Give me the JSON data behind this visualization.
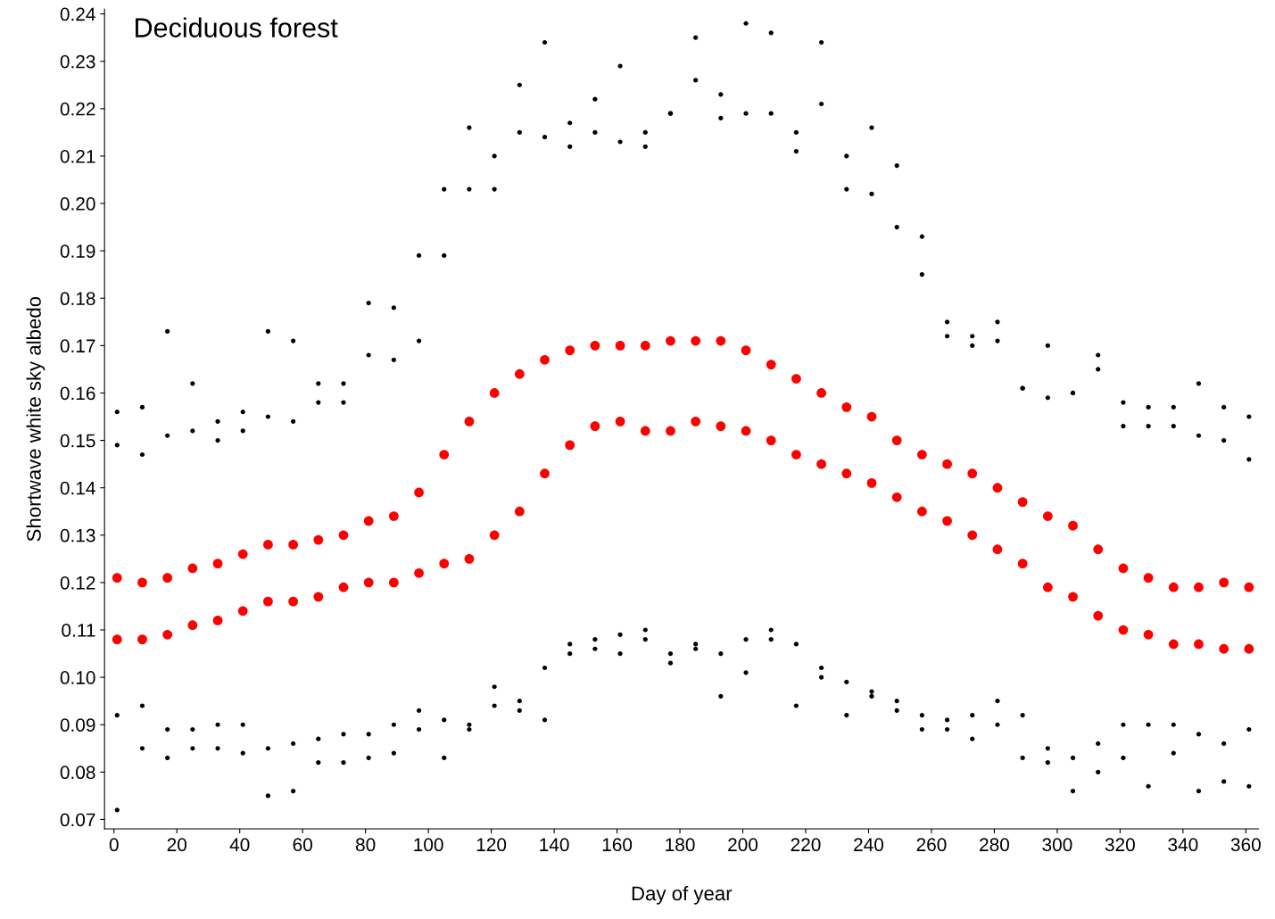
{
  "chart_data": {
    "type": "scatter",
    "xlabel": "Day of year",
    "ylabel": "Shortwave white sky albedo",
    "annotations": [
      "Deciduous forest"
    ],
    "marker": "circle",
    "grid": false,
    "xlim": [
      -3,
      364
    ],
    "xticks": [
      0,
      20,
      40,
      60,
      80,
      100,
      120,
      140,
      160,
      180,
      200,
      220,
      240,
      260,
      280,
      300,
      320,
      340,
      360
    ],
    "ylim": [
      0.068,
      0.241
    ],
    "yticks": [
      {
        "value": 0.07,
        "label": "0.07"
      },
      {
        "value": 0.08,
        "label": "0.08"
      },
      {
        "value": 0.09,
        "label": "0.09"
      },
      {
        "value": 0.1,
        "label": "0.10"
      },
      {
        "value": 0.11,
        "label": "0.11"
      },
      {
        "value": 0.12,
        "label": "0.12"
      },
      {
        "value": 0.13,
        "label": "0.13"
      },
      {
        "value": 0.14,
        "label": "0.14"
      },
      {
        "value": 0.15,
        "label": "0.15"
      },
      {
        "value": 0.16,
        "label": "0.16"
      },
      {
        "value": 0.17,
        "label": "0.17"
      },
      {
        "value": 0.18,
        "label": "0.18"
      },
      {
        "value": 0.19,
        "label": "0.19"
      },
      {
        "value": 0.2,
        "label": "0.20"
      },
      {
        "value": 0.21,
        "label": "0.21"
      },
      {
        "value": 0.22,
        "label": "0.22"
      },
      {
        "value": 0.23,
        "label": "0.23"
      },
      {
        "value": 0.24,
        "label": "0.24"
      }
    ],
    "x": [
      1,
      9,
      17,
      25,
      33,
      41,
      49,
      57,
      65,
      73,
      81,
      89,
      97,
      105,
      113,
      121,
      129,
      137,
      145,
      153,
      161,
      169,
      177,
      185,
      193,
      201,
      209,
      217,
      225,
      233,
      241,
      249,
      257,
      265,
      273,
      281,
      289,
      297,
      305,
      313,
      321,
      329,
      337,
      345,
      353,
      361
    ],
    "series": [
      {
        "color": "#000000",
        "x": [
          1,
          1,
          1,
          1,
          9,
          9,
          9,
          9,
          17,
          17,
          17,
          17,
          25,
          25,
          25,
          25,
          33,
          33,
          33,
          33,
          41,
          41,
          41,
          41,
          49,
          49,
          49,
          49,
          57,
          57,
          57,
          57,
          65,
          65,
          65,
          65,
          73,
          73,
          73,
          73,
          81,
          81,
          81,
          81,
          89,
          89,
          89,
          89,
          97,
          97,
          97,
          97,
          105,
          105,
          105,
          105,
          113,
          113,
          113,
          113,
          121,
          121,
          121,
          121,
          129,
          129,
          129,
          129,
          137,
          137,
          137,
          137,
          145,
          145,
          145,
          145,
          153,
          153,
          153,
          153,
          161,
          161,
          161,
          161,
          169,
          169,
          169,
          169,
          177,
          177,
          177,
          177,
          185,
          185,
          185,
          185,
          193,
          193,
          193,
          193,
          201,
          201,
          201,
          201,
          209,
          209,
          209,
          209,
          217,
          217,
          217,
          217,
          225,
          225,
          225,
          225,
          233,
          233,
          233,
          233,
          241,
          241,
          241,
          241,
          249,
          249,
          249,
          249,
          257,
          257,
          257,
          257,
          265,
          265,
          265,
          265,
          273,
          273,
          273,
          273,
          281,
          281,
          281,
          281,
          289,
          289,
          289,
          289,
          297,
          297,
          297,
          297,
          305,
          305,
          305,
          305,
          313,
          313,
          313,
          313,
          321,
          321,
          321,
          321,
          329,
          329,
          329,
          329,
          337,
          337,
          337,
          337,
          345,
          345,
          345,
          345,
          353,
          353,
          353,
          353,
          361,
          361,
          361,
          361
        ],
        "values": [
          0.072,
          0.092,
          0.149,
          0.156,
          0.085,
          0.094,
          0.147,
          0.157,
          0.083,
          0.089,
          0.151,
          0.173,
          0.085,
          0.089,
          0.152,
          0.162,
          0.085,
          0.09,
          0.15,
          0.154,
          0.084,
          0.09,
          0.152,
          0.156,
          0.075,
          0.085,
          0.155,
          0.173,
          0.076,
          0.086,
          0.154,
          0.171,
          0.082,
          0.087,
          0.158,
          0.162,
          0.082,
          0.088,
          0.158,
          0.162,
          0.083,
          0.088,
          0.168,
          0.179,
          0.084,
          0.09,
          0.167,
          0.178,
          0.089,
          0.093,
          0.171,
          0.189,
          0.083,
          0.091,
          0.189,
          0.203,
          0.089,
          0.09,
          0.203,
          0.216,
          0.094,
          0.098,
          0.203,
          0.21,
          0.093,
          0.095,
          0.215,
          0.225,
          0.091,
          0.102,
          0.214,
          0.234,
          0.105,
          0.107,
          0.212,
          0.217,
          0.106,
          0.108,
          0.215,
          0.222,
          0.105,
          0.109,
          0.213,
          0.229,
          0.108,
          0.11,
          0.212,
          0.215,
          0.103,
          0.105,
          0.219,
          0.219,
          0.106,
          0.107,
          0.226,
          0.235,
          0.096,
          0.105,
          0.218,
          0.223,
          0.101,
          0.108,
          0.219,
          0.238,
          0.108,
          0.11,
          0.219,
          0.236,
          0.094,
          0.107,
          0.211,
          0.215,
          0.1,
          0.102,
          0.221,
          0.234,
          0.092,
          0.099,
          0.203,
          0.21,
          0.096,
          0.097,
          0.202,
          0.216,
          0.093,
          0.095,
          0.195,
          0.208,
          0.089,
          0.092,
          0.185,
          0.193,
          0.089,
          0.091,
          0.172,
          0.175,
          0.087,
          0.092,
          0.17,
          0.172,
          0.09,
          0.095,
          0.171,
          0.175,
          0.083,
          0.092,
          0.161,
          0.161,
          0.082,
          0.085,
          0.159,
          0.17,
          0.076,
          0.083,
          0.16,
          0.16,
          0.08,
          0.086,
          0.165,
          0.168,
          0.083,
          0.09,
          0.153,
          0.158,
          0.077,
          0.09,
          0.153,
          0.157,
          0.084,
          0.09,
          0.153,
          0.157,
          0.076,
          0.088,
          0.151,
          0.162,
          0.078,
          0.086,
          0.15,
          0.157,
          0.077,
          0.089,
          0.146,
          0.155
        ]
      },
      {
        "color": "#ff0000",
        "values": [
          0.121,
          0.12,
          0.121,
          0.123,
          0.124,
          0.126,
          0.128,
          0.128,
          0.129,
          0.13,
          0.133,
          0.134,
          0.139,
          0.147,
          0.154,
          0.16,
          0.164,
          0.167,
          0.169,
          0.17,
          0.17,
          0.17,
          0.171,
          0.171,
          0.171,
          0.169,
          0.166,
          0.163,
          0.16,
          0.157,
          0.155,
          0.15,
          0.147,
          0.145,
          0.143,
          0.14,
          0.137,
          0.134,
          0.132,
          0.127,
          0.123,
          0.121,
          0.119,
          0.119,
          0.12,
          0.119
        ]
      },
      {
        "color": "#ff0000",
        "values": [
          0.108,
          0.108,
          0.109,
          0.111,
          0.112,
          0.114,
          0.116,
          0.116,
          0.117,
          0.119,
          0.12,
          0.12,
          0.122,
          0.124,
          0.125,
          0.13,
          0.135,
          0.143,
          0.149,
          0.153,
          0.154,
          0.152,
          0.152,
          0.154,
          0.153,
          0.152,
          0.15,
          0.147,
          0.145,
          0.143,
          0.141,
          0.138,
          0.135,
          0.133,
          0.13,
          0.127,
          0.124,
          0.119,
          0.117,
          0.113,
          0.11,
          0.109,
          0.107,
          0.107,
          0.106,
          0.106
        ]
      }
    ]
  }
}
